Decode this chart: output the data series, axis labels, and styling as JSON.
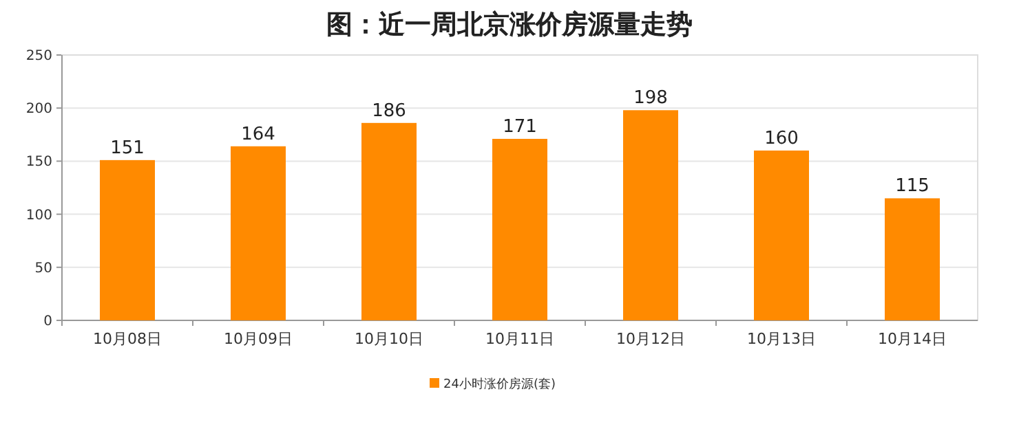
{
  "chart_data": {
    "type": "bar",
    "title": "图：近一周北京涨价房源量走势",
    "categories": [
      "10月08日",
      "10月09日",
      "10月10日",
      "10月11日",
      "10月12日",
      "10月13日",
      "10月14日"
    ],
    "series": [
      {
        "name": "24小时涨价房源(套)",
        "color": "#ff8a00",
        "values": [
          151,
          164,
          186,
          171,
          198,
          160,
          115
        ]
      }
    ],
    "ylim": [
      0,
      250
    ],
    "yticks": [
      0,
      50,
      100,
      150,
      200,
      250
    ],
    "grid": "y",
    "legend": "bottom",
    "data_labels": true
  }
}
